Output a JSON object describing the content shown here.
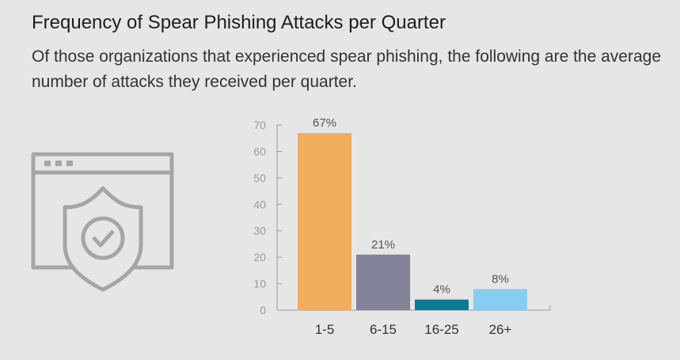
{
  "header": {
    "title": "Frequency of Spear Phishing Attacks per Quarter",
    "subtitle": "Of those organizations that experienced spear phishing, the following are the average number of attacks they received per quarter."
  },
  "illustration": {
    "icon": "browser-shield-check-icon",
    "color": "#a6a6a6"
  },
  "chart_data": {
    "type": "bar",
    "categories": [
      "1-5",
      "6-15",
      "16-25",
      "26+"
    ],
    "values": [
      67,
      21,
      4,
      8
    ],
    "value_labels": [
      "67%",
      "21%",
      "4%",
      "8%"
    ],
    "colors": [
      "#f2ae5c",
      "#828299",
      "#0b7a96",
      "#87cdf2"
    ],
    "ylim": [
      0,
      70
    ],
    "yticks": [
      "0",
      "10",
      "20",
      "30",
      "40",
      "50",
      "60",
      "70"
    ],
    "grid": false,
    "title": "",
    "xlabel": "",
    "ylabel": ""
  }
}
